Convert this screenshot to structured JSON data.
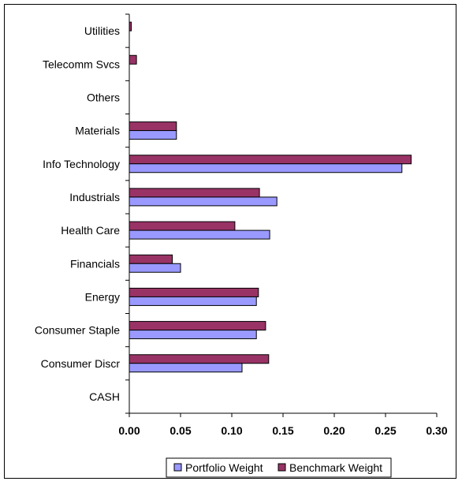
{
  "chart_data": {
    "type": "bar",
    "orientation": "horizontal",
    "categories": [
      "Utilities",
      "Telecomm Svcs",
      "Others",
      "Materials",
      "Info Technology",
      "Industrials",
      "Health Care",
      "Financials",
      "Energy",
      "Consumer Staple",
      "Consumer Discr",
      "CASH"
    ],
    "series": [
      {
        "name": "Portfolio Weight",
        "color": "#9999ff",
        "values": [
          0.0,
          0.0,
          0.0,
          0.046,
          0.266,
          0.144,
          0.137,
          0.05,
          0.124,
          0.124,
          0.11,
          0.0
        ]
      },
      {
        "name": "Benchmark Weight",
        "color": "#993366",
        "values": [
          0.002,
          0.007,
          0.0,
          0.046,
          0.275,
          0.127,
          0.103,
          0.042,
          0.126,
          0.133,
          0.136,
          0.0
        ]
      }
    ],
    "xticks": [
      "0.00",
      "0.05",
      "0.10",
      "0.15",
      "0.20",
      "0.25",
      "0.30"
    ],
    "xlim": [
      0,
      0.3
    ],
    "title": "",
    "xlabel": "",
    "ylabel": "",
    "grid": false,
    "legend": "bottom"
  }
}
